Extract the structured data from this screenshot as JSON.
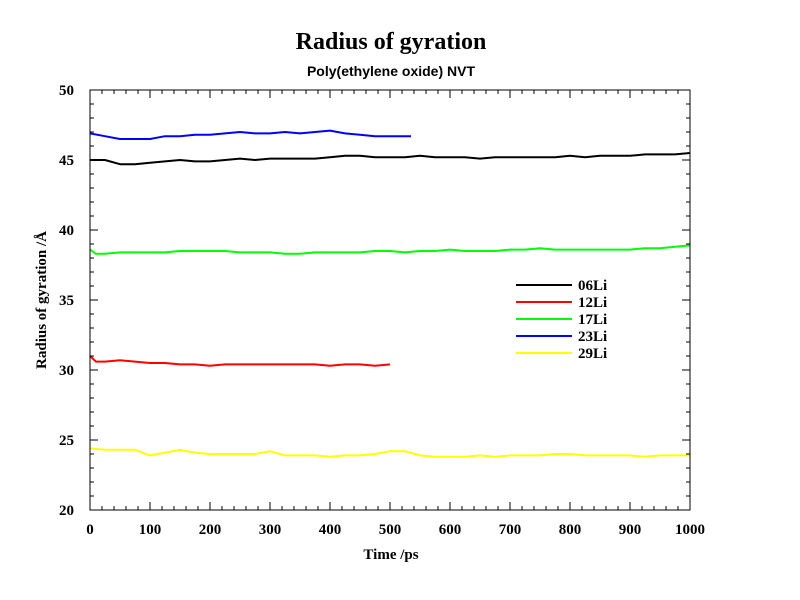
{
  "chart_data": {
    "type": "line",
    "title": "Radius of gyration",
    "subtitle": "Poly(ethylene oxide) NVT",
    "xlabel": "Time /ps",
    "ylabel": "Radius of gyration /Å",
    "xlim": [
      0,
      1000
    ],
    "ylim": [
      20,
      50
    ],
    "x_ticks": [
      0,
      100,
      200,
      300,
      400,
      500,
      600,
      700,
      800,
      900,
      1000
    ],
    "x_tick_labels": [
      "0",
      "100",
      "200",
      "300",
      "400",
      "500",
      "600",
      "700",
      "800",
      "900",
      "1000"
    ],
    "y_ticks": [
      20,
      25,
      30,
      35,
      40,
      45,
      50
    ],
    "y_tick_labels": [
      "20",
      "25",
      "30",
      "35",
      "40",
      "45",
      "50"
    ],
    "grid": false,
    "legend_position": "right",
    "series": [
      {
        "name": "06Li",
        "color": "#000000",
        "x": [
          0,
          25,
          50,
          75,
          100,
          125,
          150,
          175,
          200,
          225,
          250,
          275,
          300,
          325,
          350,
          375,
          400,
          425,
          450,
          475,
          500,
          525,
          550,
          575,
          600,
          625,
          650,
          675,
          700,
          725,
          750,
          775,
          800,
          825,
          850,
          875,
          900,
          925,
          950,
          975,
          1000
        ],
        "y": [
          45.0,
          45.0,
          44.7,
          44.7,
          44.8,
          44.9,
          45.0,
          44.9,
          44.9,
          45.0,
          45.1,
          45.0,
          45.1,
          45.1,
          45.1,
          45.1,
          45.2,
          45.3,
          45.3,
          45.2,
          45.2,
          45.2,
          45.3,
          45.2,
          45.2,
          45.2,
          45.1,
          45.2,
          45.2,
          45.2,
          45.2,
          45.2,
          45.3,
          45.2,
          45.3,
          45.3,
          45.3,
          45.4,
          45.4,
          45.4,
          45.5
        ]
      },
      {
        "name": "12Li",
        "color": "#ff0000",
        "x": [
          0,
          10,
          25,
          50,
          75,
          100,
          125,
          150,
          175,
          200,
          225,
          250,
          275,
          300,
          325,
          350,
          375,
          400,
          425,
          450,
          475,
          500
        ],
        "y": [
          31.0,
          30.6,
          30.6,
          30.7,
          30.6,
          30.5,
          30.5,
          30.4,
          30.4,
          30.3,
          30.4,
          30.4,
          30.4,
          30.4,
          30.4,
          30.4,
          30.4,
          30.3,
          30.4,
          30.4,
          30.3,
          30.4
        ]
      },
      {
        "name": "17Li",
        "color": "#00ff00",
        "x": [
          0,
          10,
          25,
          50,
          75,
          100,
          125,
          150,
          175,
          200,
          225,
          250,
          275,
          300,
          325,
          350,
          375,
          400,
          425,
          450,
          475,
          500,
          525,
          550,
          575,
          600,
          625,
          650,
          675,
          700,
          725,
          750,
          775,
          800,
          825,
          850,
          875,
          900,
          925,
          950,
          975,
          1000
        ],
        "y": [
          38.6,
          38.3,
          38.3,
          38.4,
          38.4,
          38.4,
          38.4,
          38.5,
          38.5,
          38.5,
          38.5,
          38.4,
          38.4,
          38.4,
          38.3,
          38.3,
          38.4,
          38.4,
          38.4,
          38.4,
          38.5,
          38.5,
          38.4,
          38.5,
          38.5,
          38.6,
          38.5,
          38.5,
          38.5,
          38.6,
          38.6,
          38.7,
          38.6,
          38.6,
          38.6,
          38.6,
          38.6,
          38.6,
          38.7,
          38.7,
          38.8,
          38.9
        ]
      },
      {
        "name": "23Li",
        "color": "#0000ff",
        "x": [
          0,
          25,
          50,
          75,
          100,
          125,
          150,
          175,
          200,
          225,
          250,
          275,
          300,
          325,
          350,
          375,
          400,
          425,
          450,
          475,
          500,
          535
        ],
        "y": [
          46.9,
          46.7,
          46.5,
          46.5,
          46.5,
          46.7,
          46.7,
          46.8,
          46.8,
          46.9,
          47.0,
          46.9,
          46.9,
          47.0,
          46.9,
          47.0,
          47.1,
          46.9,
          46.8,
          46.7,
          46.7,
          46.7
        ]
      },
      {
        "name": "29Li",
        "color": "#ffff00",
        "x": [
          0,
          25,
          50,
          75,
          100,
          125,
          150,
          175,
          200,
          225,
          250,
          275,
          300,
          325,
          350,
          375,
          400,
          425,
          450,
          475,
          500,
          525,
          550,
          575,
          600,
          625,
          650,
          675,
          700,
          725,
          750,
          775,
          800,
          825,
          850,
          875,
          900,
          925,
          950,
          975,
          1000
        ],
        "y": [
          24.4,
          24.3,
          24.3,
          24.3,
          23.9,
          24.1,
          24.3,
          24.1,
          24.0,
          24.0,
          24.0,
          24.0,
          24.2,
          23.9,
          23.9,
          23.9,
          23.8,
          23.9,
          23.9,
          24.0,
          24.2,
          24.2,
          23.9,
          23.8,
          23.8,
          23.8,
          23.9,
          23.8,
          23.9,
          23.9,
          23.9,
          24.0,
          24.0,
          23.9,
          23.9,
          23.9,
          23.9,
          23.8,
          23.9,
          23.9,
          23.9
        ]
      }
    ]
  }
}
